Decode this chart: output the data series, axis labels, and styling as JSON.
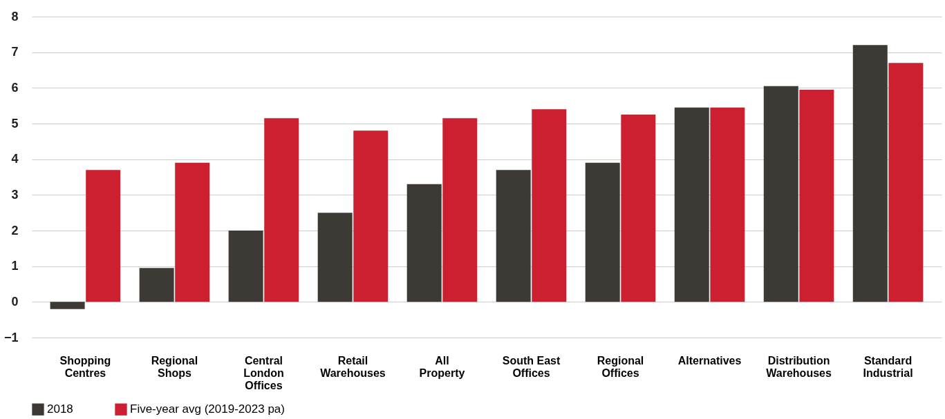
{
  "chart_data": {
    "type": "bar",
    "categories": [
      "Shopping\nCentres",
      "Regional\nShops",
      "Central\nLondon\nOffices",
      "Retail\nWarehouses",
      "All\nProperty",
      "South East\nOffices",
      "Regional\nOffices",
      "Alternatives",
      "Distribution\nWarehouses",
      "Standard\nIndustrial"
    ],
    "series": [
      {
        "name": "2018",
        "color": "#3d3935",
        "values": [
          -0.2,
          0.95,
          2.0,
          2.5,
          3.3,
          3.7,
          3.9,
          5.45,
          6.05,
          7.2
        ]
      },
      {
        "name": "Five-year avg (2019-2023 pa)",
        "color": "#cc1f2f",
        "values": [
          3.7,
          3.9,
          5.15,
          4.8,
          5.15,
          5.4,
          5.25,
          5.45,
          5.95,
          6.7
        ]
      }
    ],
    "ylim": [
      -1,
      8
    ],
    "yticks": [
      -1,
      0,
      1,
      2,
      3,
      4,
      5,
      6,
      7,
      8
    ],
    "grid": "y",
    "legend": "bottom left"
  }
}
